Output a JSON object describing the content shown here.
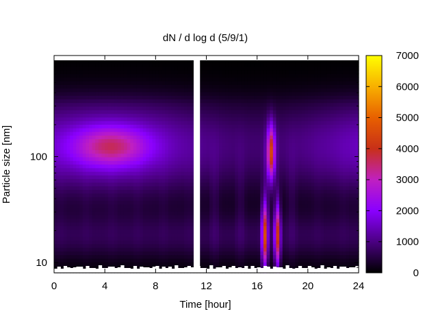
{
  "chart_data": {
    "type": "heatmap",
    "title": "dN / d log d (5/9/1)",
    "xlabel": "Time [hour]",
    "ylabel": "Particle size [nm]",
    "xlim": [
      0,
      24
    ],
    "ylim": [
      8,
      900
    ],
    "y_scale": "log",
    "x_ticks": [
      0,
      4,
      8,
      12,
      16,
      20,
      24
    ],
    "x_tick_labels": [
      "0",
      "4",
      "8",
      "12",
      "16",
      "20",
      "24"
    ],
    "y_ticks": [
      10,
      100
    ],
    "y_tick_labels": [
      "10",
      "100"
    ],
    "colorbar": {
      "min": 0,
      "max": 7000,
      "ticks": [
        0,
        1000,
        2000,
        3000,
        4000,
        5000,
        6000,
        7000
      ],
      "tick_labels": [
        "0",
        "1000",
        "2000",
        "3000",
        "4000",
        "5000",
        "6000",
        "7000"
      ],
      "palette": [
        "#000000",
        "#4b0082",
        "#8a00ff",
        "#c020c0",
        "#c83018",
        "#e86000",
        "#f8b000",
        "#ffff00"
      ]
    },
    "data_gap_hours": [
      11.0,
      11.5
    ],
    "features": [
      {
        "time": 4.5,
        "size": 125,
        "value": 3600
      },
      {
        "time": 16.6,
        "size": 18,
        "value": 5000
      },
      {
        "time": 17.1,
        "size": 110,
        "value": 4800
      },
      {
        "time": 17.6,
        "size": 18,
        "value": 4800
      }
    ]
  }
}
